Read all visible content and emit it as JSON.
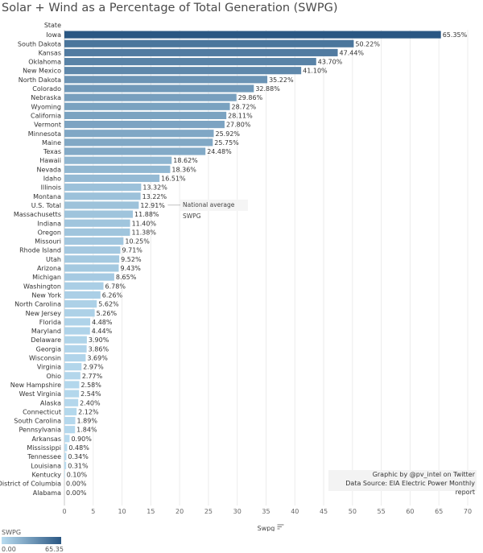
{
  "chart_data": {
    "type": "bar",
    "orientation": "horizontal",
    "title": "Solar + Wind as a Percentage of Total Generation (SWPG)",
    "row_header": "State",
    "xlabel": "Swpg",
    "xlim": [
      0,
      70
    ],
    "xticks": [
      "0",
      "5",
      "10",
      "15",
      "20",
      "25",
      "30",
      "35",
      "40",
      "45",
      "50",
      "55",
      "60",
      "65",
      "70"
    ],
    "grid": true,
    "categories": [
      "Iowa",
      "South Dakota",
      "Kansas",
      "Oklahoma",
      "New Mexico",
      "North Dakota",
      "Colorado",
      "Nebraska",
      "Wyoming",
      "California",
      "Vermont",
      "Minnesota",
      "Maine",
      "Texas",
      "Hawaii",
      "Nevada",
      "Idaho",
      "Illinois",
      "Montana",
      "U.S. Total",
      "Massachusetts",
      "Indiana",
      "Oregon",
      "Missouri",
      "Rhode Island",
      "Utah",
      "Arizona",
      "Michigan",
      "Washington",
      "New York",
      "North Carolina",
      "New Jersey",
      "Florida",
      "Maryland",
      "Delaware",
      "Georgia",
      "Wisconsin",
      "Virginia",
      "Ohio",
      "New Hampshire",
      "West Virginia",
      "Alaska",
      "Connecticut",
      "South Carolina",
      "Pennsylvania",
      "Arkansas",
      "Mississippi",
      "Tennessee",
      "Louisiana",
      "Kentucky",
      "District of Columbia",
      "Alabama"
    ],
    "values": [
      65.35,
      50.22,
      47.44,
      43.7,
      41.1,
      35.22,
      32.88,
      29.86,
      28.72,
      28.11,
      27.8,
      25.92,
      25.75,
      24.48,
      18.62,
      18.36,
      16.51,
      13.32,
      13.22,
      12.91,
      11.88,
      11.4,
      11.38,
      10.25,
      9.71,
      9.52,
      9.43,
      8.65,
      6.78,
      6.26,
      5.62,
      5.26,
      4.48,
      4.44,
      3.9,
      3.86,
      3.69,
      2.97,
      2.77,
      2.58,
      2.54,
      2.4,
      2.12,
      1.89,
      1.84,
      0.9,
      0.48,
      0.34,
      0.31,
      0.1,
      0.0,
      0.0
    ],
    "value_labels": [
      "65.35%",
      "50.22%",
      "47.44%",
      "43.70%",
      "41.10%",
      "35.22%",
      "32.88%",
      "29.86%",
      "28.72%",
      "28.11%",
      "27.80%",
      "25.92%",
      "25.75%",
      "24.48%",
      "18.62%",
      "18.36%",
      "16.51%",
      "13.32%",
      "13.22%",
      "12.91%",
      "11.88%",
      "11.40%",
      "11.38%",
      "10.25%",
      "9.71%",
      "9.52%",
      "9.43%",
      "8.65%",
      "6.78%",
      "6.26%",
      "5.62%",
      "5.26%",
      "4.48%",
      "4.44%",
      "3.90%",
      "3.86%",
      "3.69%",
      "2.97%",
      "2.77%",
      "2.58%",
      "2.54%",
      "2.40%",
      "2.12%",
      "1.89%",
      "1.84%",
      "0.90%",
      "0.48%",
      "0.34%",
      "0.31%",
      "0.10%",
      "0.00%",
      "0.00%"
    ],
    "annotation": {
      "category": "U.S. Total",
      "text": "National average SWPG"
    },
    "color_scale": {
      "min": 0.0,
      "max": 65.35,
      "min_label": "0.00",
      "max_label": "65.35",
      "low_color": "#b9dcf0",
      "high_color": "#2a5783"
    },
    "legend": {
      "title": "SWPG",
      "placement": "bottom-left"
    }
  },
  "credits": {
    "line1": "Graphic by @pv_intel on Twitter",
    "line2": "Data Source: EIA Electric Power Monthly report"
  }
}
